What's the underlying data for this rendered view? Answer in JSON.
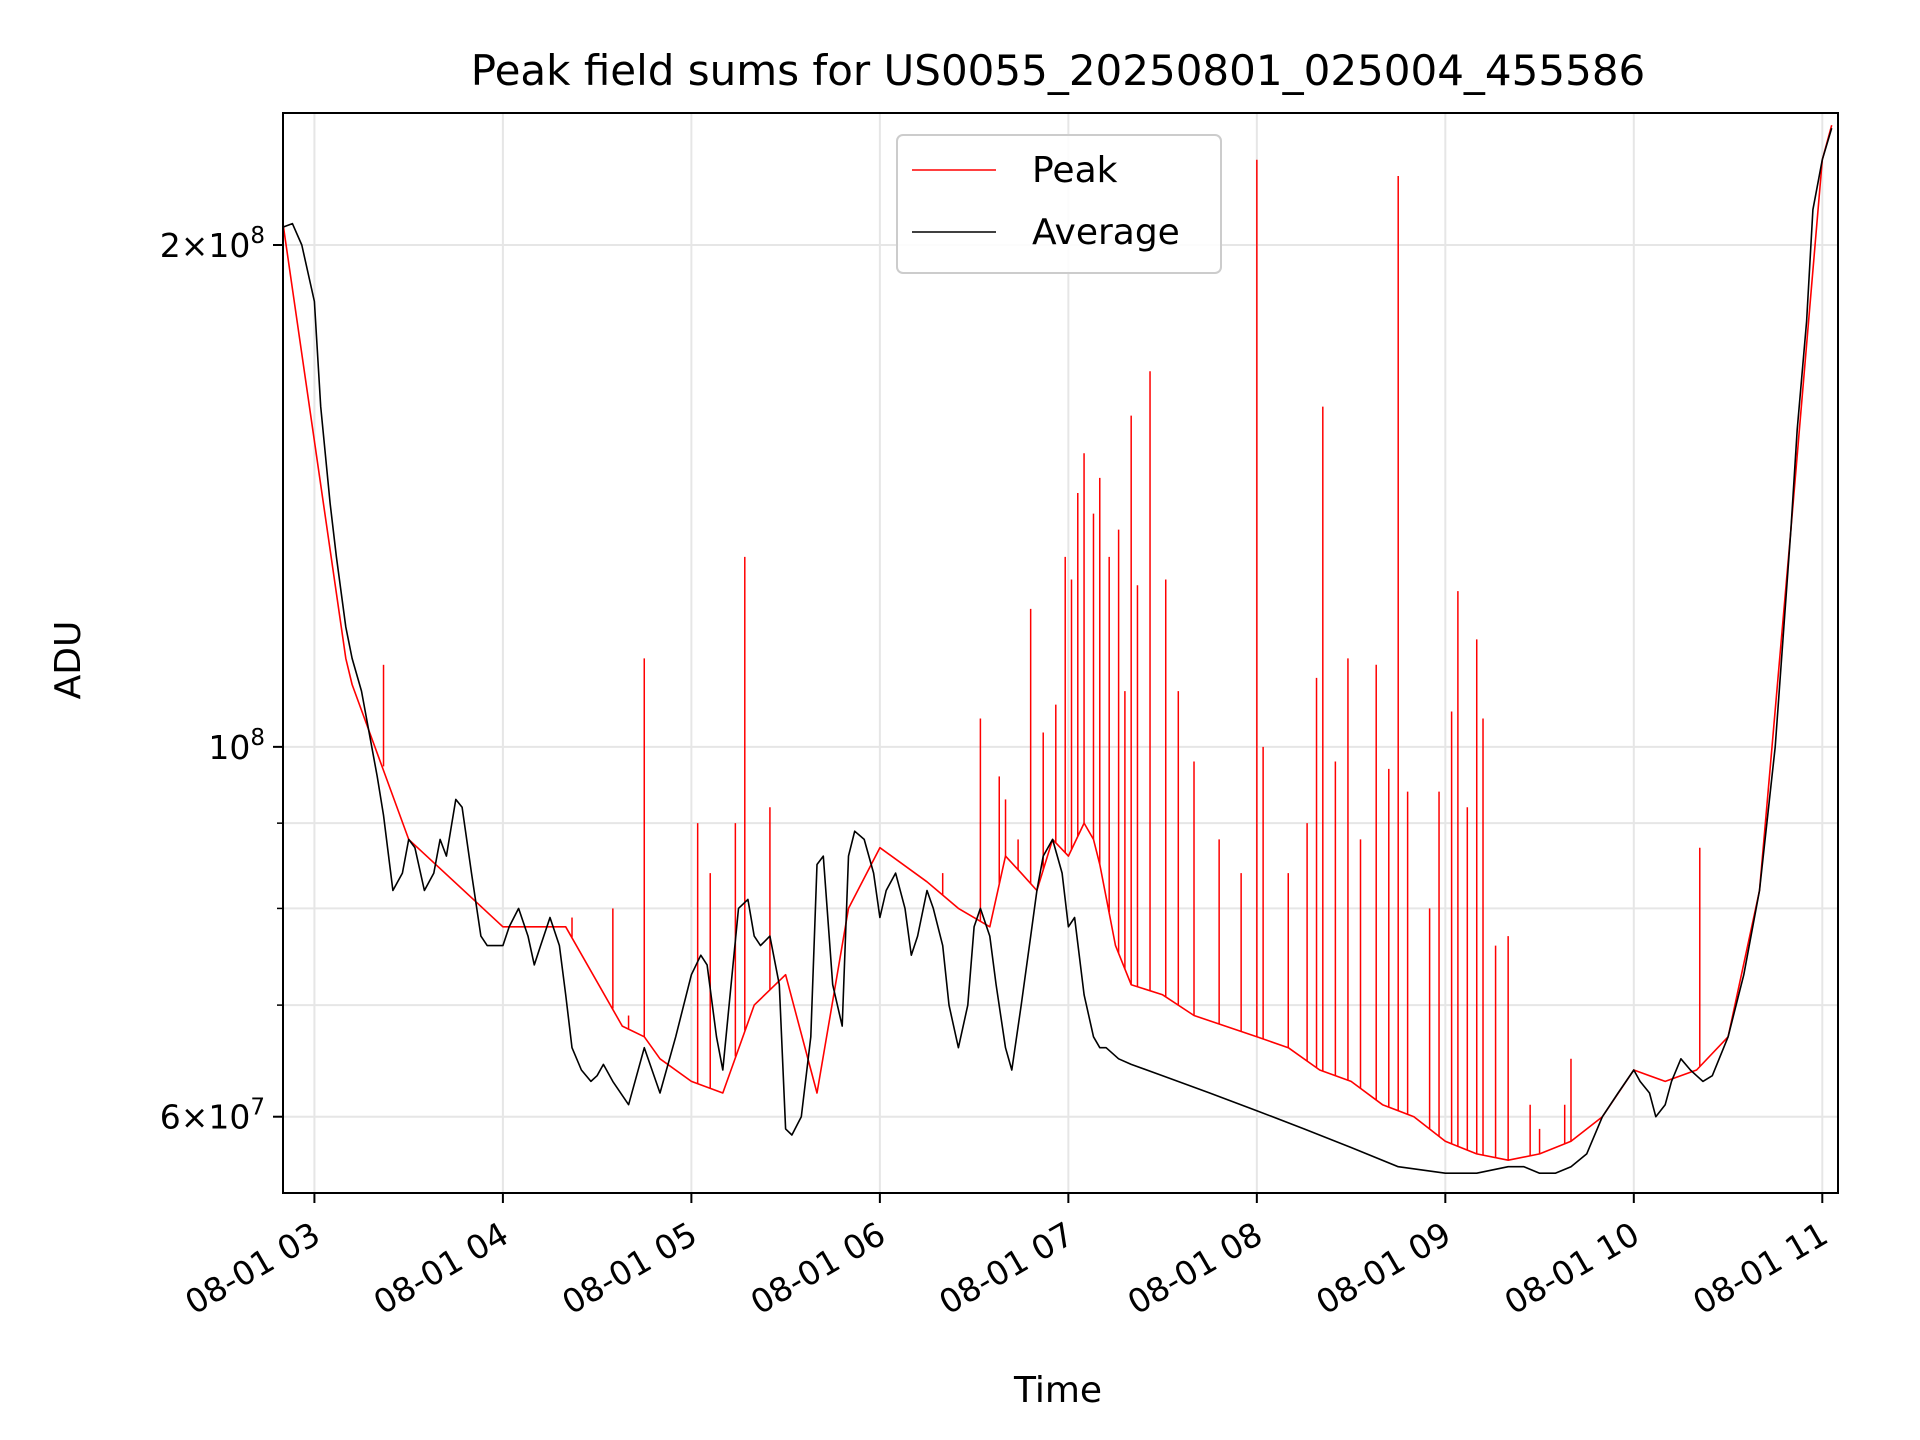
{
  "chart_data": {
    "type": "line",
    "title": "Peak field sums for US0055_20250801_025004_455586",
    "xlabel": "Time",
    "ylabel": "ADU",
    "yscale": "log",
    "ylim": [
      54000000,
      240000000
    ],
    "xlim": [
      "2025-08-01 02:50",
      "2025-08-01 11:05"
    ],
    "x_ticks": [
      "08-01 03",
      "08-01 04",
      "08-01 05",
      "08-01 06",
      "08-01 07",
      "08-01 08",
      "08-01 09",
      "08-01 10",
      "08-01 11"
    ],
    "y_ticks_major": [
      {
        "value": 60000000,
        "mantissa": "6",
        "exp": "7"
      },
      {
        "value": 100000000,
        "mantissa": "",
        "exp": "8"
      },
      {
        "value": 200000000,
        "mantissa": "2",
        "exp": "8"
      }
    ],
    "y_ticks_minor": [
      70000000,
      80000000,
      90000000
    ],
    "grid": true,
    "legend": {
      "placement": "upper center",
      "entries": [
        "Peak",
        "Average"
      ]
    },
    "colors": {
      "Peak": "#ff0000",
      "Average": "#000000"
    },
    "series": [
      {
        "name": "Average",
        "x": [
          "02:50",
          "02:53",
          "02:56",
          "03:00",
          "03:02",
          "03:05",
          "03:07",
          "03:10",
          "03:12",
          "03:15",
          "03:20",
          "03:22",
          "03:25",
          "03:28",
          "03:30",
          "03:32",
          "03:35",
          "03:38",
          "03:40",
          "03:42",
          "03:45",
          "03:47",
          "03:50",
          "03:53",
          "03:55",
          "04:00",
          "04:02",
          "04:05",
          "04:08",
          "04:10",
          "04:12",
          "04:15",
          "04:18",
          "04:20",
          "04:22",
          "04:25",
          "04:28",
          "04:30",
          "04:32",
          "04:35",
          "04:40",
          "04:45",
          "04:50",
          "04:55",
          "05:00",
          "05:03",
          "05:05",
          "05:08",
          "05:10",
          "05:15",
          "05:18",
          "05:20",
          "05:22",
          "05:25",
          "05:28",
          "05:30",
          "05:32",
          "05:35",
          "05:38",
          "05:40",
          "05:42",
          "05:45",
          "05:48",
          "05:50",
          "05:52",
          "05:55",
          "05:58",
          "06:00",
          "06:02",
          "06:05",
          "06:08",
          "06:10",
          "06:12",
          "06:15",
          "06:17",
          "06:20",
          "06:22",
          "06:25",
          "06:28",
          "06:30",
          "06:32",
          "06:35",
          "06:37",
          "06:40",
          "06:42",
          "06:45",
          "06:48",
          "06:50",
          "06:52",
          "06:55",
          "06:58",
          "07:00",
          "07:02",
          "07:05",
          "07:08",
          "07:10",
          "07:12",
          "07:14",
          "07:16",
          "07:20",
          "07:30",
          "07:45",
          "08:00",
          "08:15",
          "08:30",
          "08:45",
          "09:00",
          "09:10",
          "09:20",
          "09:25",
          "09:30",
          "09:35",
          "09:40",
          "09:45",
          "09:50",
          "09:55",
          "10:00",
          "10:02",
          "10:05",
          "10:07",
          "10:10",
          "10:12",
          "10:15",
          "10:18",
          "10:20",
          "10:22",
          "10:25",
          "10:30",
          "10:35",
          "10:40",
          "10:45",
          "10:50",
          "10:52",
          "10:55",
          "10:57",
          "11:00",
          "11:03"
        ],
        "values": [
          205000000.0,
          206000000.0,
          200000000.0,
          185000000.0,
          160000000.0,
          140000000.0,
          130000000.0,
          118000000.0,
          113000000.0,
          108000000.0,
          96000000.0,
          91000000.0,
          82000000.0,
          84000000.0,
          88000000.0,
          87000000.0,
          82000000.0,
          84000000.0,
          88000000.0,
          86000000.0,
          93000000.0,
          92000000.0,
          84000000.0,
          77000000.0,
          76000000.0,
          76000000.0,
          78000000.0,
          80000000.0,
          77000000.0,
          74000000.0,
          76000000.0,
          79000000.0,
          76000000.0,
          71000000.0,
          66000000.0,
          64000000.0,
          63000000.0,
          63500000.0,
          64500000.0,
          63000000.0,
          61000000.0,
          66000000.0,
          62000000.0,
          67000000.0,
          73000000.0,
          75000000.0,
          74000000.0,
          67000000.0,
          64000000.0,
          80000000.0,
          81000000.0,
          77000000.0,
          76000000.0,
          77000000.0,
          72000000.0,
          59000000.0,
          58500000.0,
          60000000.0,
          67000000.0,
          85000000.0,
          86000000.0,
          72000000.0,
          68000000.0,
          86000000.0,
          89000000.0,
          88000000.0,
          84000000.0,
          79000000.0,
          82000000.0,
          84000000.0,
          80000000.0,
          75000000.0,
          77000000.0,
          82000000.0,
          80000000.0,
          76000000.0,
          70000000.0,
          66000000.0,
          70000000.0,
          78000000.0,
          80000000.0,
          77000000.0,
          72000000.0,
          66000000.0,
          64000000.0,
          70000000.0,
          77000000.0,
          82000000.0,
          86000000.0,
          88000000.0,
          84000000.0,
          78000000.0,
          79000000.0,
          71000000.0,
          67000000.0,
          66000000.0,
          66000000.0,
          65500000.0,
          65000000.0,
          64500000.0,
          63500000.0,
          62000000.0,
          60500000.0,
          59000000.0,
          57500000.0,
          56000000.0,
          55500000.0,
          55500000.0,
          56000000.0,
          56000000.0,
          55500000.0,
          55500000.0,
          56000000.0,
          57000000.0,
          60000000.0,
          62000000.0,
          64000000.0,
          63000000.0,
          62000000.0,
          60000000.0,
          61000000.0,
          63000000.0,
          65000000.0,
          64000000.0,
          63500000.0,
          63000000.0,
          63500000.0,
          67000000.0,
          73000000.0,
          82000000.0,
          100000000.0,
          135000000.0,
          155000000.0,
          180000000.0,
          210000000.0,
          225000000.0,
          235000000.0
        ]
      },
      {
        "name": "Peak",
        "x": [
          "02:50",
          "03:10",
          "03:12",
          "03:30",
          "04:00",
          "04:20",
          "04:38",
          "04:45",
          "04:50",
          "05:00",
          "05:10",
          "05:20",
          "05:30",
          "05:40",
          "05:50",
          "06:00",
          "06:15",
          "06:25",
          "06:35",
          "06:40",
          "06:45",
          "06:50",
          "06:55",
          "07:00",
          "07:05",
          "07:08",
          "07:10",
          "07:15",
          "07:20",
          "07:30",
          "07:40",
          "07:50",
          "08:00",
          "08:10",
          "08:20",
          "08:30",
          "08:40",
          "08:50",
          "09:00",
          "09:10",
          "09:20",
          "09:30",
          "09:40",
          "09:50",
          "10:00",
          "10:10",
          "10:20",
          "10:30",
          "10:40",
          "10:50",
          "11:00",
          "11:03"
        ],
        "values": [
          206000000.0,
          113000000.0,
          109000000.0,
          88000000.0,
          78000000.0,
          78000000.0,
          68000000.0,
          67000000.0,
          65000000.0,
          63000000.0,
          62000000.0,
          70000000.0,
          73000000.0,
          62000000.0,
          80000000.0,
          87000000.0,
          83000000.0,
          80000000.0,
          78000000.0,
          86000000.0,
          84000000.0,
          82000000.0,
          88000000.0,
          86000000.0,
          90000000.0,
          88000000.0,
          85000000.0,
          76000000.0,
          72000000.0,
          71000000.0,
          69000000.0,
          68000000.0,
          67000000.0,
          66000000.0,
          64000000.0,
          63000000.0,
          61000000.0,
          60000000.0,
          58000000.0,
          57000000.0,
          56500000.0,
          57000000.0,
          58000000.0,
          60000000.0,
          64000000.0,
          63000000.0,
          64000000.0,
          67000000.0,
          82000000.0,
          135000000.0,
          225000000.0,
          236000000.0
        ],
        "spikes": [
          {
            "x": "03:22",
            "value": 112000000.0
          },
          {
            "x": "04:22",
            "value": 79000000.0
          },
          {
            "x": "04:35",
            "value": 80000000.0
          },
          {
            "x": "04:40",
            "value": 69000000.0
          },
          {
            "x": "04:45",
            "value": 113000000.0
          },
          {
            "x": "05:02",
            "value": 90000000.0
          },
          {
            "x": "05:06",
            "value": 84000000.0
          },
          {
            "x": "05:14",
            "value": 90000000.0
          },
          {
            "x": "05:17",
            "value": 130000000.0
          },
          {
            "x": "05:25",
            "value": 92000000.0
          },
          {
            "x": "06:20",
            "value": 84000000.0
          },
          {
            "x": "06:32",
            "value": 104000000.0
          },
          {
            "x": "06:38",
            "value": 96000000.0
          },
          {
            "x": "06:40",
            "value": 93000000.0
          },
          {
            "x": "06:44",
            "value": 88000000.0
          },
          {
            "x": "06:48",
            "value": 121000000.0
          },
          {
            "x": "06:52",
            "value": 102000000.0
          },
          {
            "x": "06:56",
            "value": 106000000.0
          },
          {
            "x": "06:59",
            "value": 130000000.0
          },
          {
            "x": "07:01",
            "value": 126000000.0
          },
          {
            "x": "07:03",
            "value": 142000000.0
          },
          {
            "x": "07:05",
            "value": 150000000.0
          },
          {
            "x": "07:08",
            "value": 138000000.0
          },
          {
            "x": "07:10",
            "value": 145000000.0
          },
          {
            "x": "07:13",
            "value": 130000000.0
          },
          {
            "x": "07:16",
            "value": 135000000.0
          },
          {
            "x": "07:18",
            "value": 108000000.0
          },
          {
            "x": "07:20",
            "value": 158000000.0
          },
          {
            "x": "07:22",
            "value": 125000000.0
          },
          {
            "x": "07:26",
            "value": 168000000.0
          },
          {
            "x": "07:31",
            "value": 126000000.0
          },
          {
            "x": "07:35",
            "value": 108000000.0
          },
          {
            "x": "07:40",
            "value": 98000000.0
          },
          {
            "x": "07:48",
            "value": 88000000.0
          },
          {
            "x": "07:55",
            "value": 84000000.0
          },
          {
            "x": "08:00",
            "value": 225000000.0
          },
          {
            "x": "08:02",
            "value": 100000000.0
          },
          {
            "x": "08:10",
            "value": 84000000.0
          },
          {
            "x": "08:16",
            "value": 90000000.0
          },
          {
            "x": "08:19",
            "value": 110000000.0
          },
          {
            "x": "08:21",
            "value": 160000000.0
          },
          {
            "x": "08:25",
            "value": 98000000.0
          },
          {
            "x": "08:29",
            "value": 113000000.0
          },
          {
            "x": "08:33",
            "value": 88000000.0
          },
          {
            "x": "08:38",
            "value": 112000000.0
          },
          {
            "x": "08:42",
            "value": 97000000.0
          },
          {
            "x": "08:45",
            "value": 220000000.0
          },
          {
            "x": "08:48",
            "value": 94000000.0
          },
          {
            "x": "08:55",
            "value": 80000000.0
          },
          {
            "x": "08:58",
            "value": 94000000.0
          },
          {
            "x": "09:02",
            "value": 105000000.0
          },
          {
            "x": "09:04",
            "value": 124000000.0
          },
          {
            "x": "09:07",
            "value": 92000000.0
          },
          {
            "x": "09:10",
            "value": 116000000.0
          },
          {
            "x": "09:12",
            "value": 104000000.0
          },
          {
            "x": "09:16",
            "value": 76000000.0
          },
          {
            "x": "09:20",
            "value": 77000000.0
          },
          {
            "x": "09:27",
            "value": 61000000.0
          },
          {
            "x": "09:30",
            "value": 59000000.0
          },
          {
            "x": "09:38",
            "value": 61000000.0
          },
          {
            "x": "09:40",
            "value": 65000000.0
          },
          {
            "x": "10:21",
            "value": 87000000.0
          }
        ]
      }
    ]
  }
}
